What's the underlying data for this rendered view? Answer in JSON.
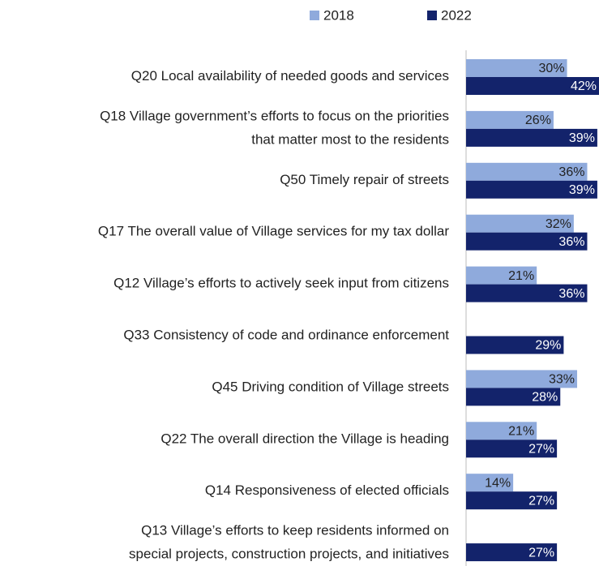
{
  "chart_data": {
    "type": "bar",
    "orientation": "horizontal",
    "categories": [
      "Q20 Local availability of needed goods and services",
      "Q18 Village government’s efforts to focus on the priorities\nthat matter most to the residents",
      "Q50 Timely repair of streets",
      "Q17 The overall value of Village services for my tax dollar",
      "Q12 Village’s efforts to actively seek input from citizens",
      "Q33 Consistency of code and ordinance enforcement",
      "Q45 Driving condition of Village streets",
      "Q22 The overall direction the Village is heading",
      "Q14 Responsiveness of elected officials",
      "Q13 Village’s efforts to keep residents informed on\nspecial projects, construction projects, and initiatives"
    ],
    "series": [
      {
        "name": "2018",
        "color": "#8faadc",
        "values": [
          30,
          26,
          36,
          32,
          21,
          null,
          33,
          21,
          14,
          null
        ],
        "value_labels": [
          "30%",
          "26%",
          "36%",
          "32%",
          "21%",
          null,
          "33%",
          "21%",
          "14%",
          null
        ]
      },
      {
        "name": "2022",
        "color": "#13236b",
        "values": [
          42,
          39,
          39,
          36,
          36,
          29,
          28,
          27,
          27,
          27
        ],
        "value_labels": [
          "42%",
          "39%",
          "39%",
          "36%",
          "36%",
          "29%",
          "28%",
          "27%",
          "27%",
          "27%"
        ]
      }
    ],
    "xlim": [
      0,
      39.5
    ],
    "legend": "top"
  }
}
